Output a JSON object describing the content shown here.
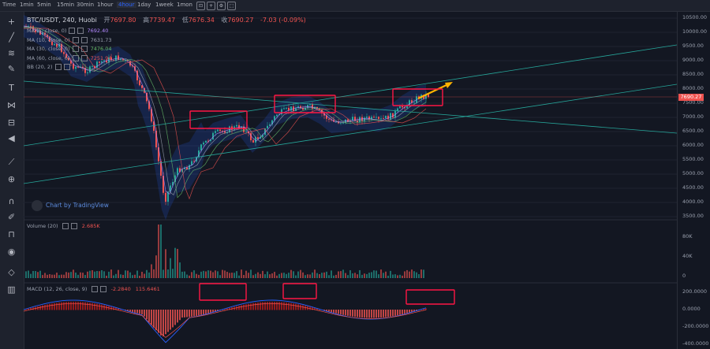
{
  "timeframes": [
    "Time",
    "1min",
    "5min",
    "15min",
    "30min",
    "1hour",
    "4hour",
    "1day",
    "1week",
    "1mon"
  ],
  "active_timeframe": "4hour",
  "header": {
    "symbol": "BTC/USDT, 240, Huobi",
    "open_label": "开",
    "open": "7697.80",
    "high_label": "高",
    "high": "7739.47",
    "low_label": "低",
    "low": "7676.34",
    "close_label": "收",
    "close": "7690.27",
    "change": "-7.03 (-0.09%)"
  },
  "indicators": [
    {
      "label": "MA (5, close, 0)",
      "value": "7692.40",
      "color": "#b388ff"
    },
    {
      "label": "MA (10, close, 0)",
      "value": "7631.73",
      "color": "#9aa0ae"
    },
    {
      "label": "MA (30, close, 0)",
      "value": "7476.04",
      "color": "#66bb6a"
    },
    {
      "label": "MA (60, close, 0)",
      "value": "7251.94",
      "color": "#ef5350"
    },
    {
      "label": "BB (20, 2)",
      "value": "",
      "color": "#9aa0ae"
    }
  ],
  "watermark": "Chart by TradingView",
  "price_axis": [
    "10500.00",
    "10000.00",
    "9500.00",
    "9000.00",
    "8500.00",
    "8000.00",
    "7500.00",
    "7000.00",
    "6500.00",
    "6000.00",
    "5500.00",
    "5000.00",
    "4500.00",
    "4000.00",
    "3500.00"
  ],
  "current_price_tag": "7690.27",
  "volume": {
    "label": "Volume (20)",
    "value": "2.685K",
    "axis": [
      "80K",
      "40K",
      "0"
    ]
  },
  "macd": {
    "label": "MACD (12, 26, close, 9)",
    "v1": "-2.2840",
    "v2": "115.6461",
    "axis": [
      "200.0000",
      "0.0000",
      "-200.0000",
      "-400.0000"
    ]
  },
  "colors": {
    "bg": "#131722",
    "up": "#26a69a",
    "down": "#ef5350",
    "annot": "#ff1744",
    "arrow": "#ffb300",
    "channel": "#26a69a"
  }
}
